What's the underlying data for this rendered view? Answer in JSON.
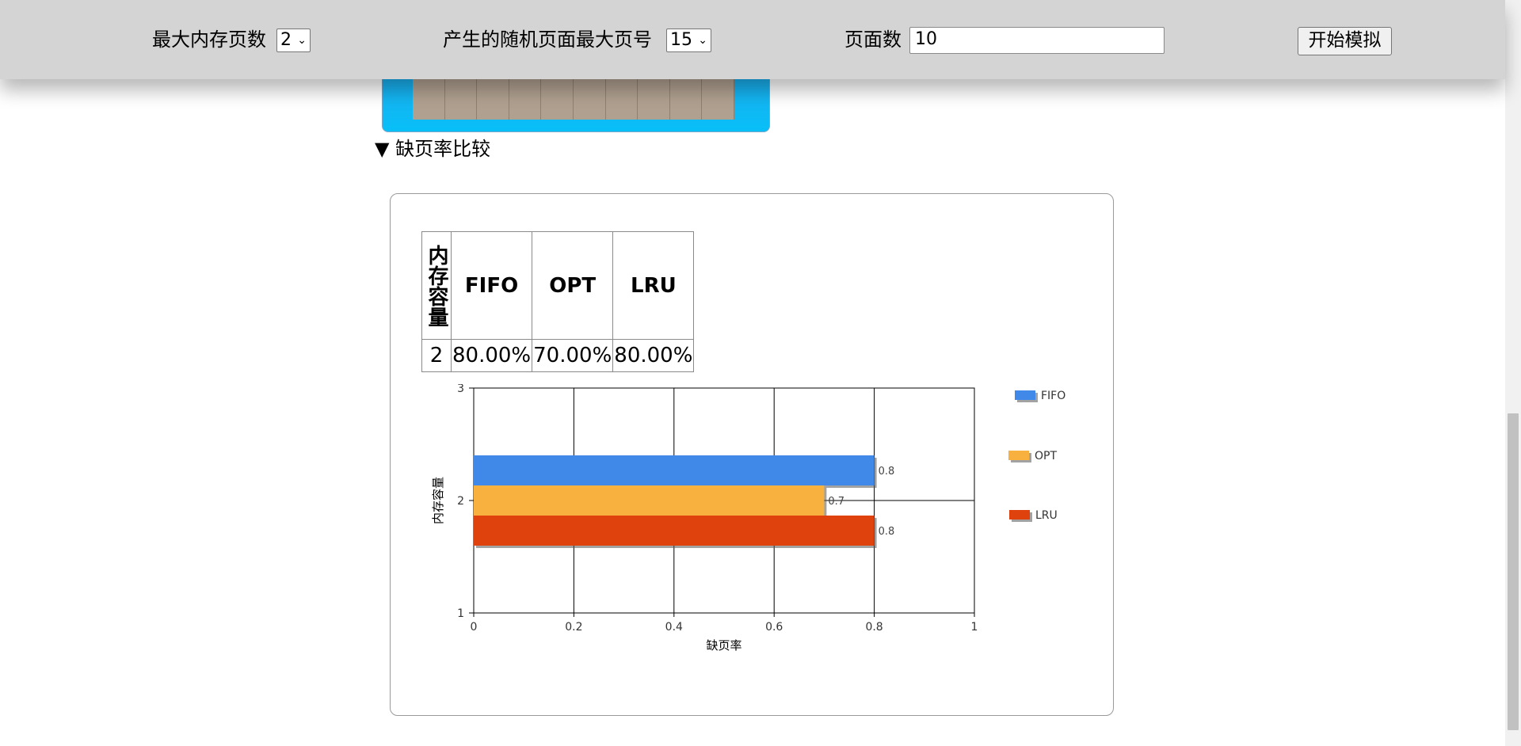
{
  "toolbar": {
    "max_memory_label": "最大内存页数",
    "max_memory_value": "2",
    "max_page_label": "产生的随机页面最大页号",
    "max_page_value": "15",
    "page_count_label": "页面数",
    "page_count_value": "10",
    "start_button": "开始模拟"
  },
  "section": {
    "marker": "▼",
    "title": "缺页率比较"
  },
  "table": {
    "headers": [
      "内存容量",
      "FIFO",
      "OPT",
      "LRU"
    ],
    "rows": [
      [
        "2",
        "80.00%",
        "70.00%",
        "80.00%"
      ]
    ]
  },
  "chart_data": {
    "type": "bar",
    "orientation": "horizontal",
    "categories": [
      "2"
    ],
    "series": [
      {
        "name": "FIFO",
        "values": [
          0.8
        ],
        "color": "#4189e8"
      },
      {
        "name": "OPT",
        "values": [
          0.7
        ],
        "color": "#f8b13e"
      },
      {
        "name": "LRU",
        "values": [
          0.8
        ],
        "color": "#e0420e"
      }
    ],
    "data_labels": [
      "0.8",
      "0.7",
      "0.8"
    ],
    "xlabel": "缺页率",
    "ylabel": "内存容量",
    "xlim": [
      0,
      1
    ],
    "ylim": [
      1,
      3
    ],
    "x_ticks": [
      "0",
      "0.2",
      "0.4",
      "0.6",
      "0.8",
      "1"
    ],
    "y_ticks": [
      "1",
      "2",
      "3"
    ],
    "grid": true,
    "legend_position": "right"
  }
}
